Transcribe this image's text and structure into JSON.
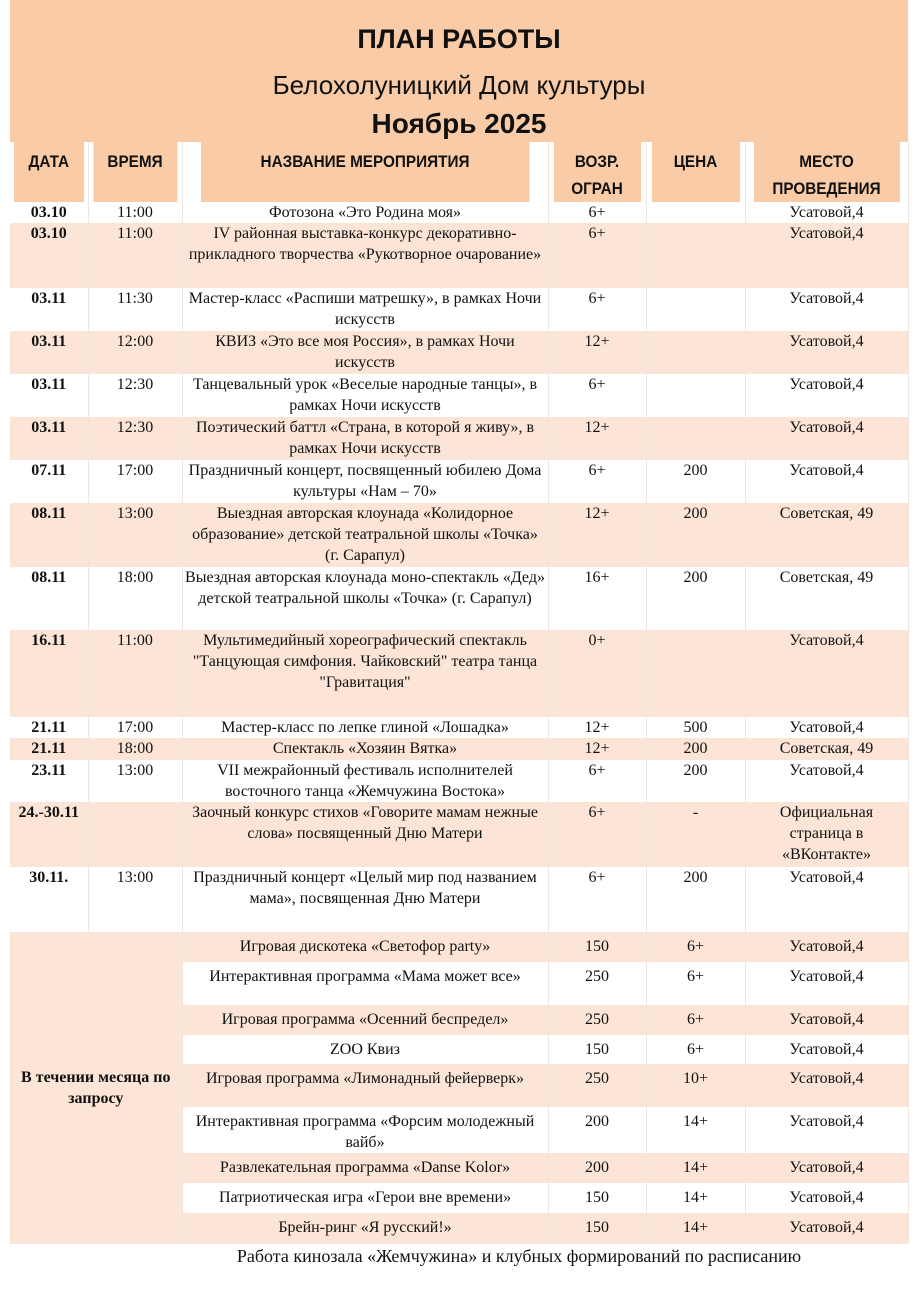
{
  "header": {
    "title": "ПЛАН РАБОТЫ",
    "org": "Белохолуницкий Дом культуры",
    "month": "Ноябрь 2025"
  },
  "columns": [
    "ДАТА",
    "ВРЕМЯ",
    "НАЗВАНИЕ МЕРОПРИЯТИЯ",
    "ВОЗР. ОГРАН",
    "ЦЕНА",
    "МЕСТО ПРОВЕДЕНИЯ"
  ],
  "events": [
    {
      "date": "03.10",
      "time": "11:00",
      "name": "Фотозона «Это Родина моя»",
      "age": "6+",
      "price": "",
      "place": "Усатовой,4"
    },
    {
      "date": "03.10",
      "time": "11:00",
      "name": "IV районная выставка-конкурс декоративно-прикладного творчества «Рукотворное очарование»",
      "age": "6+",
      "price": "",
      "place": "Усатовой,4"
    },
    {
      "date": "03.11",
      "time": "11:30",
      "name": "Мастер-класс «Распиши матрешку», в рамках Ночи искусств",
      "age": "6+",
      "price": "",
      "place": "Усатовой,4"
    },
    {
      "date": "03.11",
      "time": "12:00",
      "name": "КВИЗ «Это все моя Россия», в рамках Ночи искусств",
      "age": "12+",
      "price": "",
      "place": "Усатовой,4"
    },
    {
      "date": "03.11",
      "time": "12:30",
      "name": "Танцевальный урок «Веселые народные танцы», в рамках Ночи искусств",
      "age": "6+",
      "price": "",
      "place": "Усатовой,4"
    },
    {
      "date": "03.11",
      "time": "12:30",
      "name": "Поэтический баттл «Страна, в которой я живу», в рамках Ночи искусств",
      "age": "12+",
      "price": "",
      "place": "Усатовой,4"
    },
    {
      "date": "07.11",
      "time": "17:00",
      "name": "Праздничный концерт, посвященный юбилею Дома культуры «Нам – 70»",
      "age": "6+",
      "price": "200",
      "place": "Усатовой,4"
    },
    {
      "date": "08.11",
      "time": "13:00",
      "name": "Выездная авторская клоунада «Колидорное образование» детской театральной школы «Точка» (г. Сарапул)",
      "age": "12+",
      "price": "200",
      "place": "Советская, 49"
    },
    {
      "date": "08.11",
      "time": "18:00",
      "name": "Выездная авторская клоунада моно-спектакль «Дед» детской театральной школы «Точка» (г. Сарапул)",
      "age": "16+",
      "price": "200",
      "place": "Советская, 49"
    },
    {
      "date": "16.11",
      "time": "11:00",
      "name": "Мультимедийный хореографический спектакль \"Танцующая симфония. Чайковский\" театра танца \"Гравитация\"",
      "age": "0+",
      "price": "",
      "place": "Усатовой,4"
    },
    {
      "date": "21.11",
      "time": "17:00",
      "name": "Мастер-класс по лепке глиной «Лошадка»",
      "age": "12+",
      "price": "500",
      "place": "Усатовой,4"
    },
    {
      "date": "21.11",
      "time": "18:00",
      "name": "Спектакль «Хозяин Вятка»",
      "age": "12+",
      "price": "200",
      "place": "Советская, 49"
    },
    {
      "date": "23.11",
      "time": "13:00",
      "name": "VII межрайонный фестиваль исполнителей восточного танца «Жемчужина Востока»",
      "age": "6+",
      "price": "200",
      "place": "Усатовой,4"
    },
    {
      "date": "24.-30.11",
      "time": "",
      "name": "Заочный конкурс стихов «Говорите мамам нежные слова» посвященный Дню Матери",
      "age": "6+",
      "price": "-",
      "place": "Официальная страница в «ВКонтакте»"
    },
    {
      "date": "30.11.",
      "time": "13:00",
      "name": "Праздничный концерт «Целый мир под названием мама», посвященная Дню Матери",
      "age": "6+",
      "price": "200",
      "place": "Усатовой,4"
    }
  ],
  "on_request": {
    "label": "В течении месяца по запросу",
    "items": [
      {
        "name": "Игровая дискотека «Светофор party»",
        "c1": "150",
        "c2": "6+",
        "place": "Усатовой,4"
      },
      {
        "name": "Интерактивная программа «Мама может все»",
        "c1": "250",
        "c2": "6+",
        "place": "Усатовой,4"
      },
      {
        "name": "Игровая программа «Осенний беспредел»",
        "c1": "250",
        "c2": "6+",
        "place": "Усатовой,4"
      },
      {
        "name": "ZOO Квиз",
        "c1": "150",
        "c2": "6+",
        "place": "Усатовой,4"
      },
      {
        "name": "Игровая программа «Лимонадный фейерверк»",
        "c1": "250",
        "c2": "10+",
        "place": "Усатовой,4"
      },
      {
        "name": "Интерактивная программа «Форсим молодежный вайб»",
        "c1": "200",
        "c2": "14+",
        "place": "Усатовой,4"
      },
      {
        "name": "Развлекательная программа «Danse Kolor»",
        "c1": "200",
        "c2": "14+",
        "place": "Усатовой,4"
      },
      {
        "name": "Патриотическая игра «Герои вне времени»",
        "c1": "150",
        "c2": "14+",
        "place": "Усатовой,4"
      },
      {
        "name": "Брейн-ринг «Я русский!»",
        "c1": "150",
        "c2": "14+",
        "place": "Усатовой,4"
      }
    ]
  },
  "footer": "Работа кинозала «Жемчужина» и клубных формирований по расписанию"
}
